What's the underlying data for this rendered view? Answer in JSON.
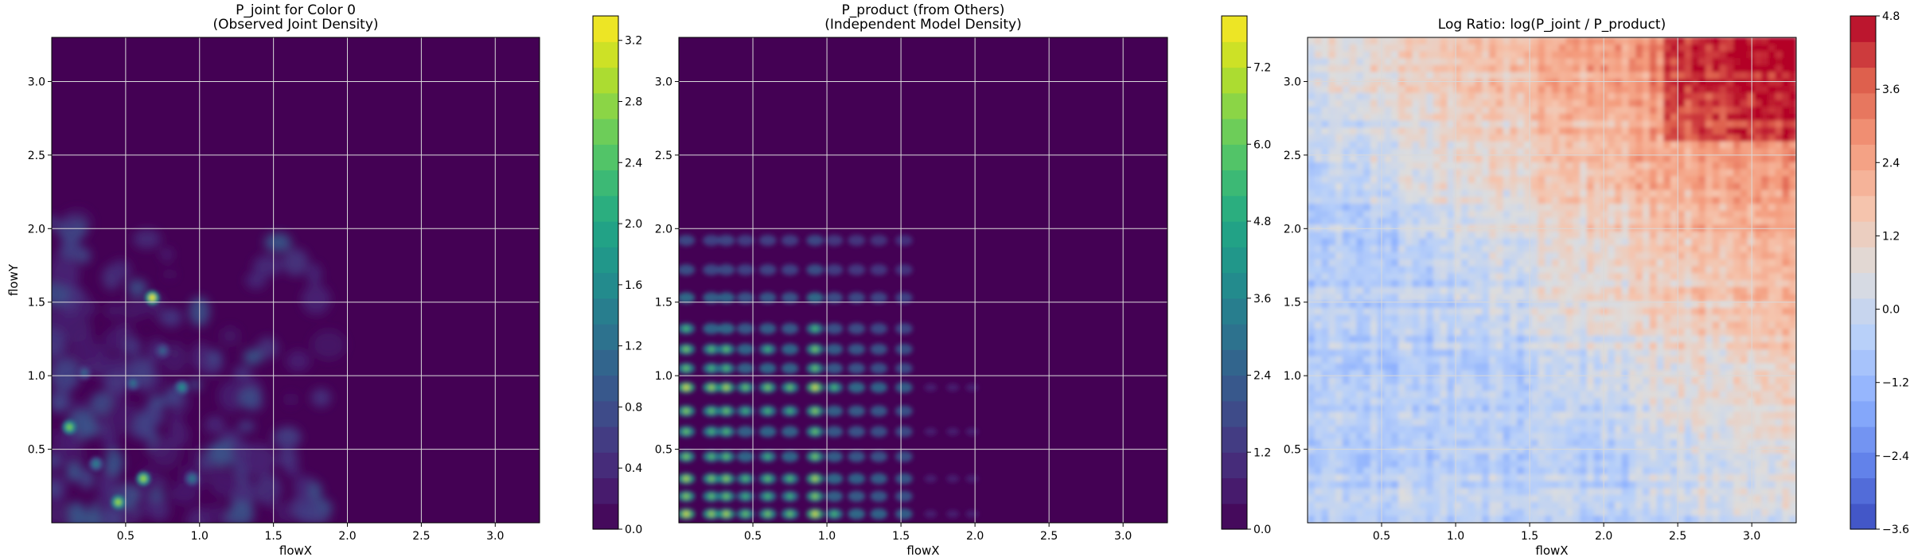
{
  "chart_data": [
    {
      "type": "heatmap",
      "title": "P_joint for Color 0\n(Observed Joint Density)",
      "xlabel": "flowX",
      "ylabel": "flowY",
      "xlim": [
        0.0,
        3.3
      ],
      "ylim": [
        0.0,
        3.3
      ],
      "xticks": [
        "0.5",
        "1.0",
        "1.5",
        "2.0",
        "2.5",
        "3.0"
      ],
      "yticks": [
        "0.5",
        "1.0",
        "1.5",
        "2.0",
        "2.5",
        "3.0"
      ],
      "grid": true,
      "colormap": "viridis",
      "colorbar": {
        "min": 0.0,
        "max": 3.36,
        "ticks": [
          "0.0",
          "0.4",
          "0.8",
          "1.2",
          "1.6",
          "2.0",
          "2.4",
          "2.8",
          "3.2"
        ]
      },
      "hotspots": [
        {
          "x": 0.68,
          "y": 1.53,
          "z": 3.2
        },
        {
          "x": 0.12,
          "y": 0.65,
          "z": 2.6
        },
        {
          "x": 0.62,
          "y": 0.3,
          "z": 2.8
        },
        {
          "x": 0.45,
          "y": 0.14,
          "z": 2.8
        },
        {
          "x": 0.88,
          "y": 0.92,
          "z": 1.6
        },
        {
          "x": 0.3,
          "y": 0.4,
          "z": 1.4
        },
        {
          "x": 0.95,
          "y": 0.3,
          "z": 1.3
        },
        {
          "x": 0.55,
          "y": 0.95,
          "z": 1.2
        },
        {
          "x": 0.22,
          "y": 1.02,
          "z": 1.0
        },
        {
          "x": 0.75,
          "y": 1.17,
          "z": 1.0
        }
      ]
    },
    {
      "type": "heatmap",
      "title": "P_product (from Others)\n(Independent Model Density)",
      "xlabel": "flowX",
      "ylabel": "",
      "xlim": [
        0.0,
        3.3
      ],
      "ylim": [
        0.0,
        3.3
      ],
      "xticks": [
        "0.5",
        "1.0",
        "1.5",
        "2.0",
        "2.5",
        "3.0"
      ],
      "yticks": [
        "0.5",
        "1.0",
        "1.5",
        "2.0",
        "2.5",
        "3.0"
      ],
      "grid": true,
      "colormap": "viridis",
      "colorbar": {
        "min": 0.0,
        "max": 8.0,
        "ticks": [
          "0.0",
          "1.2",
          "2.4",
          "3.6",
          "4.8",
          "6.0",
          "7.2"
        ]
      },
      "marginal_peaks_x": [
        0.05,
        0.22,
        0.32,
        0.45,
        0.6,
        0.75,
        0.92,
        1.05,
        1.2,
        1.35,
        1.52
      ],
      "marginal_peaks_y": [
        0.06,
        0.18,
        0.3,
        0.45,
        0.62,
        0.76,
        0.92,
        1.05,
        1.18,
        1.32,
        1.53,
        1.72,
        1.92
      ]
    },
    {
      "type": "heatmap",
      "title": "Log Ratio: log(P_joint / P_product)",
      "xlabel": "flowX",
      "ylabel": "",
      "xlim": [
        0.0,
        3.3
      ],
      "ylim": [
        0.0,
        3.3
      ],
      "xticks": [
        "0.5",
        "1.0",
        "1.5",
        "2.0",
        "2.5",
        "3.0"
      ],
      "yticks": [
        "0.5",
        "1.0",
        "1.5",
        "2.0",
        "2.5",
        "3.0"
      ],
      "grid": true,
      "colormap": "coolwarm",
      "colorbar": {
        "min": -3.6,
        "max": 4.8,
        "ticks": [
          "−3.6",
          "−2.4",
          "−1.2",
          "0.0",
          "1.2",
          "2.4",
          "3.6",
          "4.8"
        ]
      }
    }
  ]
}
